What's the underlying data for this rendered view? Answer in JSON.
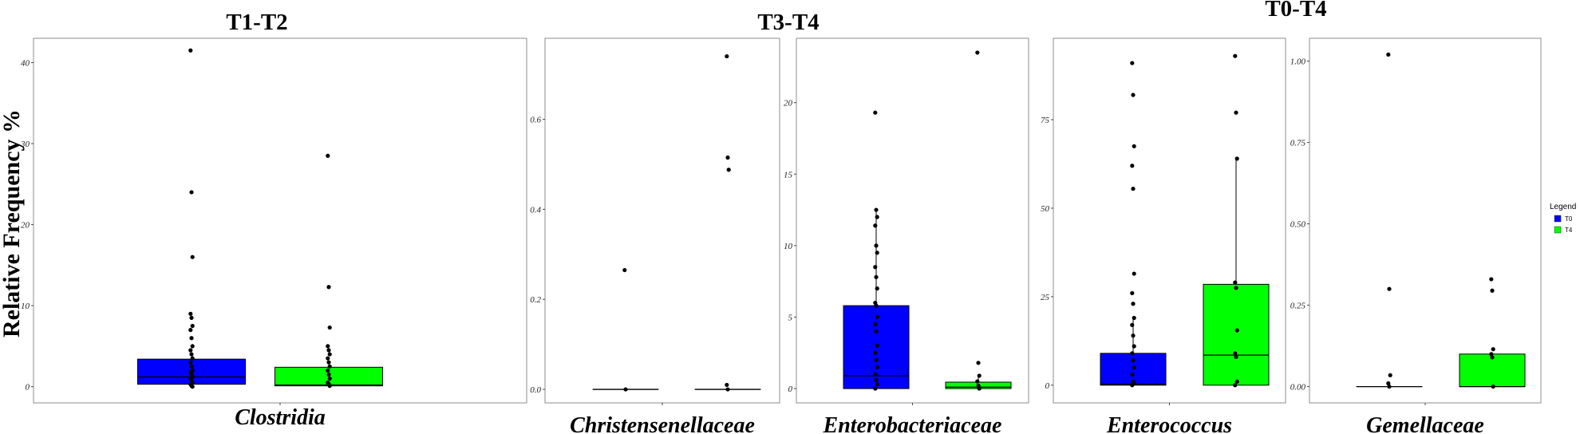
{
  "ylabel": "Relative Frequency %",
  "group_titles": [
    "T1-T2",
    "T3-T4",
    "T0-T4"
  ],
  "legend": {
    "title": "Legend",
    "entries": [
      {
        "label": "T0",
        "color": "#0000ff"
      },
      {
        "label": "T4",
        "color": "#00ff00"
      }
    ]
  },
  "colors": {
    "T0": "#0000ff",
    "T4": "#00ff00",
    "frame": "#8c8c8c",
    "points": "#000000"
  },
  "chart_data": [
    {
      "type": "box",
      "group": "T1-T2",
      "xlabel": "Clostridia",
      "ylim": [
        -2,
        43
      ],
      "yticks": [
        0,
        10,
        20,
        30,
        40
      ],
      "ytick_labels": [
        "0",
        "10",
        "20",
        "30",
        "40"
      ],
      "series": [
        {
          "name": "T0",
          "q1": 0.3,
          "median": 1.2,
          "q3": 3.4,
          "whisker_low": 0,
          "whisker_high": 3.4,
          "points": [
            41.5,
            24,
            16,
            9,
            8.5,
            7.5,
            7,
            6,
            5,
            4.5,
            4,
            3.5,
            3,
            2.5,
            2,
            1.8,
            1.5,
            1.2,
            1,
            0.8,
            0.5,
            0.3,
            0.1,
            0
          ]
        },
        {
          "name": "T4",
          "q1": 0.1,
          "median": 0.2,
          "q3": 2.4,
          "whisker_low": 0,
          "whisker_high": 2.4,
          "points": [
            28.5,
            12.3,
            7.3,
            5,
            4.5,
            4,
            3.5,
            3,
            2.5,
            2,
            1.5,
            1,
            0.5,
            0.3,
            0.1
          ]
        }
      ]
    },
    {
      "type": "box",
      "group": "T3-T4",
      "xlabel": "Christensenellaceae",
      "ylim": [
        -0.03,
        0.78
      ],
      "yticks": [
        0.0,
        0.2,
        0.4,
        0.6
      ],
      "ytick_labels": [
        "0.0",
        "0.2",
        "0.4",
        "0.6"
      ],
      "series": [
        {
          "name": "T0",
          "q1": 0,
          "median": 0,
          "q3": 0,
          "whisker_low": 0,
          "whisker_high": 0,
          "points": [
            0.265,
            0
          ]
        },
        {
          "name": "T4",
          "q1": 0,
          "median": 0,
          "q3": 0,
          "whisker_low": 0,
          "whisker_high": 0,
          "points": [
            0.74,
            0.515,
            0.488,
            0.01,
            0
          ]
        }
      ]
    },
    {
      "type": "box",
      "group": "T3-T4",
      "xlabel": "Enterobacteriaceae",
      "ylim": [
        -1,
        24.5
      ],
      "yticks": [
        0,
        5,
        10,
        15,
        20
      ],
      "ytick_labels": [
        "0",
        "5",
        "10",
        "15",
        "20"
      ],
      "series": [
        {
          "name": "T0",
          "q1": 0,
          "median": 0.9,
          "q3": 5.8,
          "whisker_low": 0,
          "whisker_high": 12.5,
          "points": [
            19.3,
            12.5,
            12,
            11.4,
            10,
            9.5,
            8.5,
            7.8,
            7,
            6,
            5.8,
            5,
            4.5,
            4,
            3,
            2.5,
            2,
            1.5,
            1,
            0.6,
            0.3,
            0
          ]
        },
        {
          "name": "T4",
          "q1": 0,
          "median": 0.1,
          "q3": 0.45,
          "whisker_low": 0,
          "whisker_high": 0.9,
          "points": [
            23.5,
            1.8,
            0.9,
            0.5,
            0.2,
            0
          ]
        }
      ]
    },
    {
      "type": "box",
      "group": "T0-T4",
      "xlabel": "Enterococcus",
      "ylim": [
        -5,
        98
      ],
      "yticks": [
        0,
        25,
        50,
        75
      ],
      "ytick_labels": [
        "0",
        "25",
        "50",
        "75"
      ],
      "series": [
        {
          "name": "T0",
          "q1": 0,
          "median": 0.3,
          "q3": 9,
          "whisker_low": 0,
          "whisker_high": 19,
          "points": [
            91,
            82,
            67.5,
            62,
            55.5,
            31.5,
            26,
            23,
            19,
            17,
            14,
            11,
            9,
            7,
            5,
            3,
            1,
            0.5,
            0
          ]
        },
        {
          "name": "T4",
          "q1": 0,
          "median": 8.5,
          "q3": 28.5,
          "whisker_low": 0,
          "whisker_high": 64,
          "points": [
            93,
            77,
            64,
            29,
            27.5,
            15.5,
            9,
            8,
            1,
            0
          ]
        }
      ]
    },
    {
      "type": "box",
      "group": "T0-T4",
      "xlabel": "Gemellaceae",
      "ylim": [
        -0.05,
        1.07
      ],
      "yticks": [
        0.0,
        0.25,
        0.5,
        0.75,
        1.0
      ],
      "ytick_labels": [
        "0.00",
        "0.25",
        "0.50",
        "0.75",
        "1.00"
      ],
      "series": [
        {
          "name": "T0",
          "q1": 0,
          "median": 0,
          "q3": 0,
          "whisker_low": 0,
          "whisker_high": 0,
          "points": [
            1.02,
            0.3,
            0.035,
            0.01,
            0
          ]
        },
        {
          "name": "T4",
          "q1": 0,
          "median": 0,
          "q3": 0.1,
          "whisker_low": 0,
          "whisker_high": 0.1,
          "points": [
            0.33,
            0.295,
            0.115,
            0.1,
            0.09,
            0
          ]
        }
      ]
    }
  ]
}
